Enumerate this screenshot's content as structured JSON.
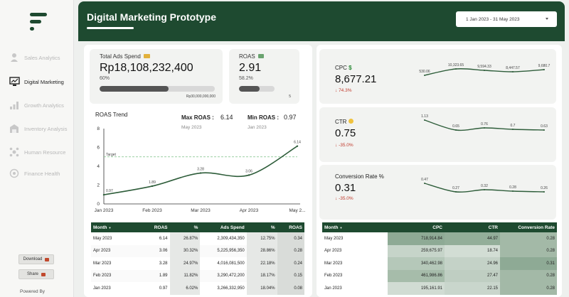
{
  "sidebar": {
    "items": [
      {
        "label": "Sales Analytics",
        "icon": "person-money-icon",
        "active": false
      },
      {
        "label": "Digital Marketing",
        "icon": "monitor-chart-icon",
        "active": true
      },
      {
        "label": "Growth Analytics",
        "icon": "bar-growth-icon",
        "active": false
      },
      {
        "label": "Inventory Analysis",
        "icon": "warehouse-icon",
        "active": false
      },
      {
        "label": "Human Resource",
        "icon": "people-network-icon",
        "active": false
      },
      {
        "label": "Finance Health",
        "icon": "finance-shield-icon",
        "active": false
      }
    ],
    "download_label": "Download",
    "share_label": "Share",
    "powered_by": "Powered By"
  },
  "header": {
    "title": "Digital Marketing Prototype",
    "date_range": "1 Jan 2023 - 31 May 2023"
  },
  "kpi_left": {
    "ads_spend": {
      "label": "Total Ads Spend",
      "value": "Rp18,108,232,400",
      "pct": "60%",
      "target": "Rp30,000,000,000",
      "progress": 0.6
    },
    "roas": {
      "label": "ROAS",
      "value": "2.91",
      "pct": "58.2%",
      "target": "5",
      "progress": 0.582
    }
  },
  "roas_trend": {
    "title": "ROAS Trend",
    "max_label": "Max ROAS :",
    "max_value": "6.14",
    "max_month": "May 2023",
    "min_label": "Min ROAS :",
    "min_value": "0.97",
    "min_month": "Jan 2023",
    "target_label": "Target"
  },
  "kpi_right": [
    {
      "label": "CPC",
      "value": "8,677.21",
      "change": "74.3%",
      "direction": "down",
      "emoji": "dollar-icon"
    },
    {
      "label": "CTR",
      "value": "0.75",
      "change": "-35.0%",
      "direction": "down",
      "emoji": "pointing-hand-icon"
    },
    {
      "label": "Conversion Rate %",
      "value": "0.31",
      "change": "-35.0%",
      "direction": "down",
      "emoji": ""
    }
  ],
  "sparklines": {
    "cpc_labels": [
      "530.06",
      "10,323.65",
      "9,594.33",
      "8,447.57",
      "9,680.7"
    ],
    "ctr_labels": [
      "1.13",
      "0.65",
      "0.76",
      "0.7",
      "0.63"
    ],
    "conv_labels": [
      "0.47",
      "0.27",
      "0.32",
      "0.28",
      "0.26"
    ]
  },
  "chart_data": {
    "type": "line",
    "title": "ROAS Trend",
    "categories": [
      "Jan 2023",
      "Feb 2023",
      "Mar 2023",
      "Apr 2023",
      "May 2..."
    ],
    "values": [
      0.97,
      1.89,
      3.28,
      3.06,
      6.14
    ],
    "value_labels": [
      "0.97",
      "1.89",
      "3.28",
      "3.06",
      "6.14"
    ],
    "ylim": [
      0,
      8
    ],
    "yticks": [
      "0",
      "2",
      "4",
      "6",
      "8"
    ],
    "target": 5,
    "target_label": "Target",
    "grid": false,
    "line_color": "#2e5d3a"
  },
  "table_left": {
    "headers": [
      "Month",
      "ROAS",
      "%",
      "Ads Spend",
      "%",
      "ROAS"
    ],
    "rows": [
      [
        "May 2023",
        "6.14",
        "26.87%",
        "2,309,434,350",
        "12.75%",
        "0.34"
      ],
      [
        "Apr 2023",
        "3.06",
        "30.32%",
        "5,225,956,350",
        "28.86%",
        "0.28"
      ],
      [
        "Mar 2023",
        "3.28",
        "24.97%",
        "4,016,081,500",
        "22.18%",
        "0.24"
      ],
      [
        "Feb 2023",
        "1.89",
        "11.82%",
        "3,290,472,200",
        "18.17%",
        "0.15"
      ],
      [
        "Jan 2023",
        "0.97",
        "6.02%",
        "3,266,332,950",
        "18.04%",
        "0.08"
      ]
    ]
  },
  "table_right": {
    "headers": [
      "Month",
      "CPC",
      "CTR",
      "Conversion Rate"
    ],
    "rows": [
      [
        "May 2023",
        "718,914.84",
        "44.97",
        "0.28"
      ],
      [
        "Apr 2023",
        "259,675.97",
        "18.74",
        "0.28"
      ],
      [
        "Mar 2023",
        "340,462.98",
        "24.96",
        "0.31"
      ],
      [
        "Feb 2023",
        "461,986.86",
        "27.47",
        "0.28"
      ],
      [
        "Jan 2023",
        "195,161.91",
        "22.15",
        "0.28"
      ]
    ],
    "cpc_shades": [
      "#8eaa95",
      "#c6d4c9",
      "#b5c8b9",
      "#a6bcaa",
      "#d1dcd3"
    ],
    "ctr_shades": [
      "#93ae99",
      "#d2ddd4",
      "#c4d2c7",
      "#bfcec2",
      "#c9d6cc"
    ],
    "conv_shades": [
      "#a3b9a7",
      "#a3b9a7",
      "#8eaa95",
      "#a3b9a7",
      "#a3b9a7"
    ]
  },
  "colors": {
    "brand": "#1e4a30",
    "negative": "#c0392b"
  }
}
